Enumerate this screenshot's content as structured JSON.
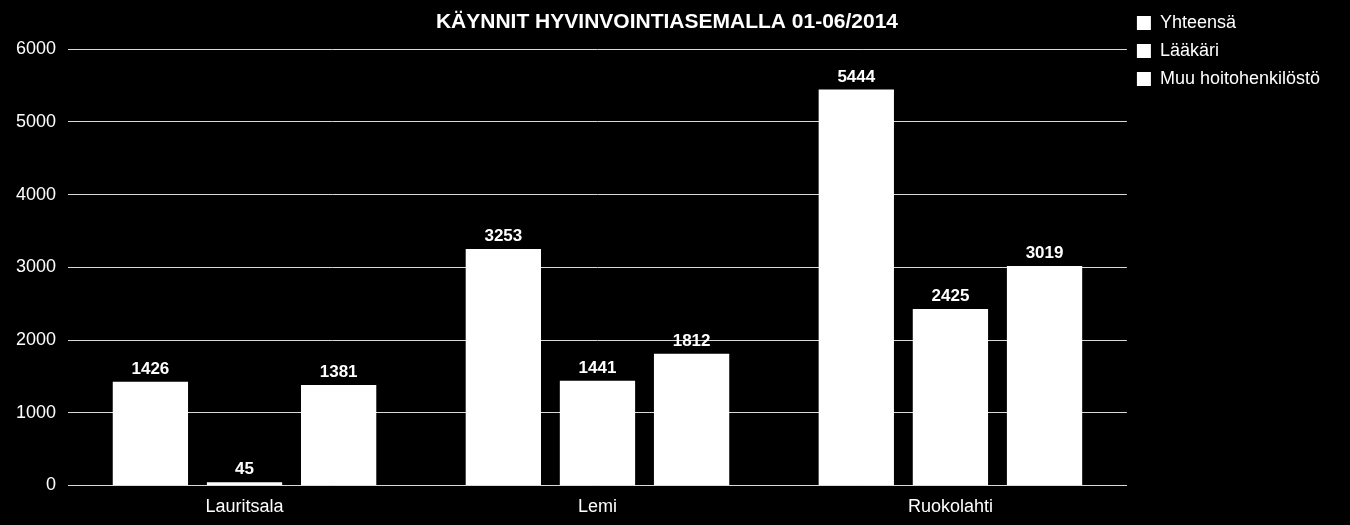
{
  "chart_data": {
    "type": "bar",
    "title": "KÄYNNIT HYVINVOINTIASEMALLA 01-06/2014",
    "categories": [
      "Lauritsala",
      "Lemi",
      "Ruokolahti"
    ],
    "series": [
      {
        "name": "Yhteensä",
        "color": "#ffffff",
        "values": [
          1426,
          3253,
          5444
        ]
      },
      {
        "name": "Lääkäri",
        "color": "#ffffff",
        "values": [
          45,
          1441,
          2425
        ]
      },
      {
        "name": "Muu hoitohenkilöstö",
        "color": "#ffffff",
        "values": [
          1381,
          1812,
          3019
        ]
      }
    ],
    "ylim": [
      0,
      6000
    ],
    "yticks": [
      0,
      1000,
      2000,
      3000,
      4000,
      5000,
      6000
    ],
    "grid": true,
    "legend": "top-right",
    "data_labels": true
  }
}
